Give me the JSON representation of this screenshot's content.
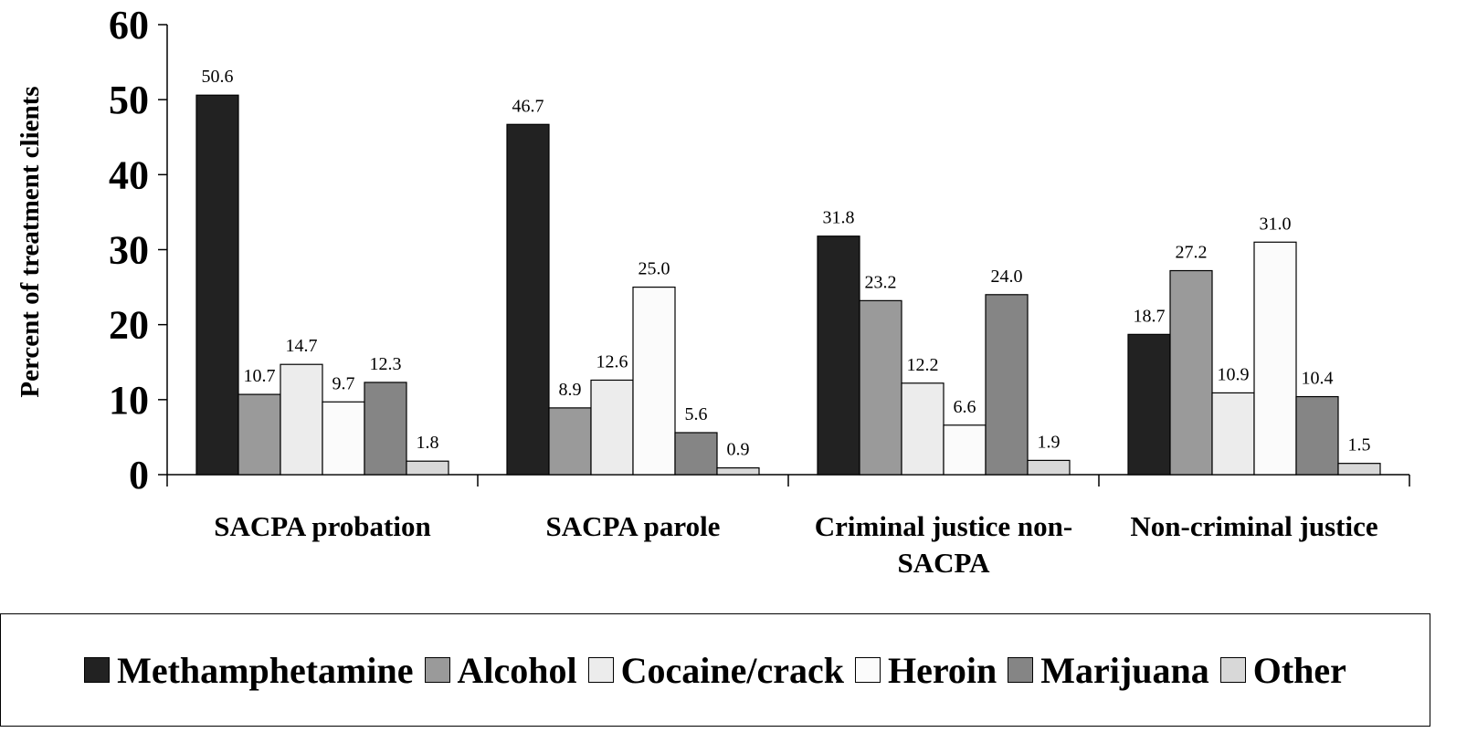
{
  "chart_data": {
    "type": "bar",
    "y_label": "Percent of treatment clients",
    "categories": [
      "SACPA probation",
      "SACPA parole",
      "Criminal justice non-SACPA",
      "Non-criminal justice"
    ],
    "series": [
      {
        "name": "Methamphetamine",
        "color": "#222222",
        "values": [
          50.6,
          46.7,
          31.8,
          18.7
        ],
        "value_labels": [
          "50.6",
          "46.7",
          "31.8",
          "18.7"
        ]
      },
      {
        "name": "Alcohol",
        "color": "#9a9a9a",
        "values": [
          10.7,
          8.9,
          23.2,
          27.2
        ],
        "value_labels": [
          "10.7",
          "8.9",
          "23.2",
          "27.2"
        ]
      },
      {
        "name": "Cocaine/crack",
        "color": "#ececec",
        "values": [
          14.7,
          12.6,
          12.2,
          10.9
        ],
        "value_labels": [
          "14.7",
          "12.6",
          "12.2",
          "10.9"
        ]
      },
      {
        "name": "Heroin",
        "color": "#fbfbfb",
        "values": [
          9.7,
          25.0,
          6.6,
          31.0
        ],
        "value_labels": [
          "9.7",
          "25.0",
          "6.6",
          "31.0"
        ]
      },
      {
        "name": "Marijuana",
        "color": "#858585",
        "values": [
          12.3,
          5.6,
          24.0,
          10.4
        ],
        "value_labels": [
          "12.3",
          "5.6",
          "24.0",
          "10.4"
        ]
      },
      {
        "name": "Other",
        "color": "#d8d8d8",
        "values": [
          1.8,
          0.9,
          1.9,
          1.5
        ],
        "value_labels": [
          "1.8",
          "0.9",
          "1.9",
          "1.5"
        ]
      }
    ],
    "ylim": [
      0,
      60
    ],
    "yticks": [
      0,
      10,
      20,
      30,
      40,
      50,
      60
    ],
    "grid": false
  }
}
